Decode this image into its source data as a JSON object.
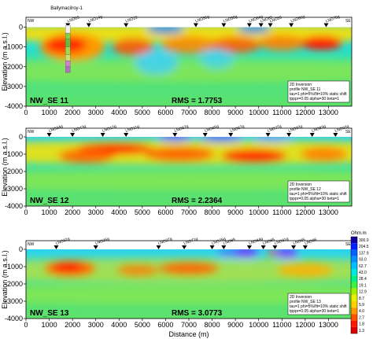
{
  "chart_data": {
    "type": "heatmap",
    "xlabel": "Distance (m)",
    "ylabel": "Elevation (m a.s.l.)",
    "xlim": [
      0,
      14000
    ],
    "ylim": [
      -4000,
      500
    ],
    "x_ticks": [
      "0",
      "1000",
      "2000",
      "3000",
      "4000",
      "5000",
      "6000",
      "7000",
      "8000",
      "9000",
      "10000",
      "11000",
      "12000",
      "13000"
    ],
    "y_ticks": [
      "0",
      "-1000",
      "-2000",
      "-3000",
      "-4000"
    ],
    "colorbar": {
      "unit": "Ohm.m",
      "labels": [
        "300.0",
        "204.5",
        "137.9",
        "93.0",
        "62.7",
        "43.0",
        "28.4",
        "19.1",
        "12.9",
        "8.7",
        "5.9",
        "4.0",
        "2.7",
        "1.8",
        "1.3"
      ]
    },
    "panels": [
      {
        "id": "nw_se_11",
        "profile_label": "NW_SE 11",
        "rms": "RMS = 1.7753",
        "left_tag": "NW",
        "right_tag": "SE",
        "annotation": [
          "2D Inversion",
          "profile NW_SE 11",
          "tau=1 phi=5%/fit=10% static shift",
          "tpppr=0.05 alpha=30 beta=1"
        ],
        "well_label": "Ballymacilroy-1",
        "well_x": 1800,
        "stations": [
          {
            "label": "LNO09",
            "x": 1800
          },
          {
            "label": "LNO14g",
            "x": 2700
          },
          {
            "label": "LNO29",
            "x": 4300
          },
          {
            "label": "LNO56g",
            "x": 7300
          },
          {
            "label": "LNO58g",
            "x": 8500
          },
          {
            "label": "LNO64g",
            "x": 9600
          },
          {
            "label": "LNO63",
            "x": 10100
          },
          {
            "label": "LNO59",
            "x": 10500
          },
          {
            "label": "LNO66g",
            "x": 11400
          },
          {
            "label": "LNO70g",
            "x": 12900
          }
        ]
      },
      {
        "id": "nw_se_12",
        "profile_label": "NW_SE 12",
        "rms": "RMS = 2.2364",
        "left_tag": "NW",
        "right_tag": "SE",
        "annotation": [
          "2D Inversion",
          "profile NW_SE 12",
          "tau=1 phi=5%/fit=10% static shift",
          "tpppr=0.05 alpha=30 beta=1"
        ],
        "stations": [
          {
            "label": "LNO34g",
            "x": 1000
          },
          {
            "label": "LNO43g",
            "x": 2000
          },
          {
            "label": "LNO12g",
            "x": 3300
          },
          {
            "label": "LNO11g",
            "x": 4300
          },
          {
            "label": "LNO67g",
            "x": 6400
          },
          {
            "label": "LNO65g",
            "x": 7700
          },
          {
            "label": "LNO67g",
            "x": 8800
          },
          {
            "label": "LNO77g",
            "x": 10400
          },
          {
            "label": "LNO92g",
            "x": 11300
          },
          {
            "label": "LNO83g",
            "x": 12300
          },
          {
            "label": "LNO92g",
            "x": 13300
          }
        ]
      },
      {
        "id": "nw_se_13",
        "profile_label": "NW_SE 13",
        "rms": "RMS = 3.0773",
        "left_tag": "NW",
        "right_tag": "SE",
        "annotation": [
          "2D Inversion",
          "profile NW_SE 13",
          "tau=1 phi=5%/fit=10% static shift",
          "tpppr=0.05 alpha=30 beta=1"
        ],
        "stations": [
          {
            "label": "LNO32g",
            "x": 1300
          },
          {
            "label": "LNO26g",
            "x": 3000
          },
          {
            "label": "LNO27g",
            "x": 5700
          },
          {
            "label": "LNO71g",
            "x": 6800
          },
          {
            "label": "LNO76g",
            "x": 8000
          },
          {
            "label": "LNO89",
            "x": 8500
          },
          {
            "label": "LNO84g",
            "x": 9600
          },
          {
            "label": "LNO85",
            "x": 10200
          },
          {
            "label": "LNO91g",
            "x": 10700
          },
          {
            "label": "LNO95",
            "x": 11500
          },
          {
            "label": "LNO96",
            "x": 12000
          }
        ]
      }
    ]
  }
}
